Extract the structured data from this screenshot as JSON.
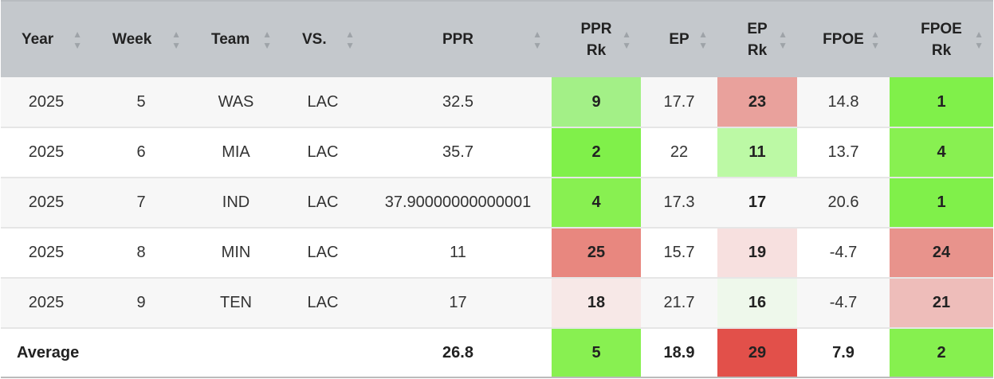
{
  "columns": {
    "year": "Year",
    "week": "Week",
    "team": "Team",
    "vs": "VS.",
    "ppr": "PPR",
    "ppr_rk_1": "PPR",
    "ppr_rk_2": "Rk",
    "ep": "EP",
    "ep_rk_1": "EP",
    "ep_rk_2": "Rk",
    "fpoe": "FPOE",
    "fpoe_rk_1": "FPOE",
    "fpoe_rk_2": "Rk"
  },
  "sort_icons": {
    "up": "▲",
    "down": "▼"
  },
  "rows": [
    {
      "year": "2025",
      "week": "5",
      "team": "WAS",
      "vs": "LAC",
      "ppr": "32.5",
      "ppr_rk": "9",
      "ep": "17.7",
      "ep_rk": "23",
      "fpoe": "14.8",
      "fpoe_rk": "1",
      "ppr_rk_color": "#a3f087",
      "ep_rk_color": "#e9a19c",
      "fpoe_rk_color": "#80f04a"
    },
    {
      "year": "2025",
      "week": "6",
      "team": "MIA",
      "vs": "LAC",
      "ppr": "35.7",
      "ppr_rk": "2",
      "ep": "22",
      "ep_rk": "11",
      "fpoe": "13.7",
      "fpoe_rk": "4",
      "ppr_rk_color": "#80f04a",
      "ep_rk_color": "#bcf9a5",
      "fpoe_rk_color": "#88f051"
    },
    {
      "year": "2025",
      "week": "7",
      "team": "IND",
      "vs": "LAC",
      "ppr": "37.90000000000001",
      "ppr_rk": "4",
      "ep": "17.3",
      "ep_rk": "17",
      "fpoe": "20.6",
      "fpoe_rk": "1",
      "ppr_rk_color": "#88f051",
      "ep_rk_color": "#f7f7f7",
      "fpoe_rk_color": "#80f04a"
    },
    {
      "year": "2025",
      "week": "8",
      "team": "MIN",
      "vs": "LAC",
      "ppr": "11",
      "ppr_rk": "25",
      "ep": "15.7",
      "ep_rk": "19",
      "fpoe": "-4.7",
      "fpoe_rk": "24",
      "ppr_rk_color": "#e8877f",
      "ep_rk_color": "#f7e0df",
      "fpoe_rk_color": "#e8938c"
    },
    {
      "year": "2025",
      "week": "9",
      "team": "TEN",
      "vs": "LAC",
      "ppr": "17",
      "ppr_rk": "18",
      "ep": "21.7",
      "ep_rk": "16",
      "fpoe": "-4.7",
      "fpoe_rk": "21",
      "ppr_rk_color": "#f7e8e7",
      "ep_rk_color": "#eef8eb",
      "fpoe_rk_color": "#eebdba"
    }
  ],
  "average": {
    "label": "Average",
    "ppr": "26.8",
    "ppr_rk": "5",
    "ep": "18.9",
    "ep_rk": "29",
    "fpoe": "7.9",
    "fpoe_rk": "2",
    "ppr_rk_color": "#88f051",
    "ep_rk_color": "#e2504a",
    "fpoe_rk_color": "#86f04f"
  }
}
